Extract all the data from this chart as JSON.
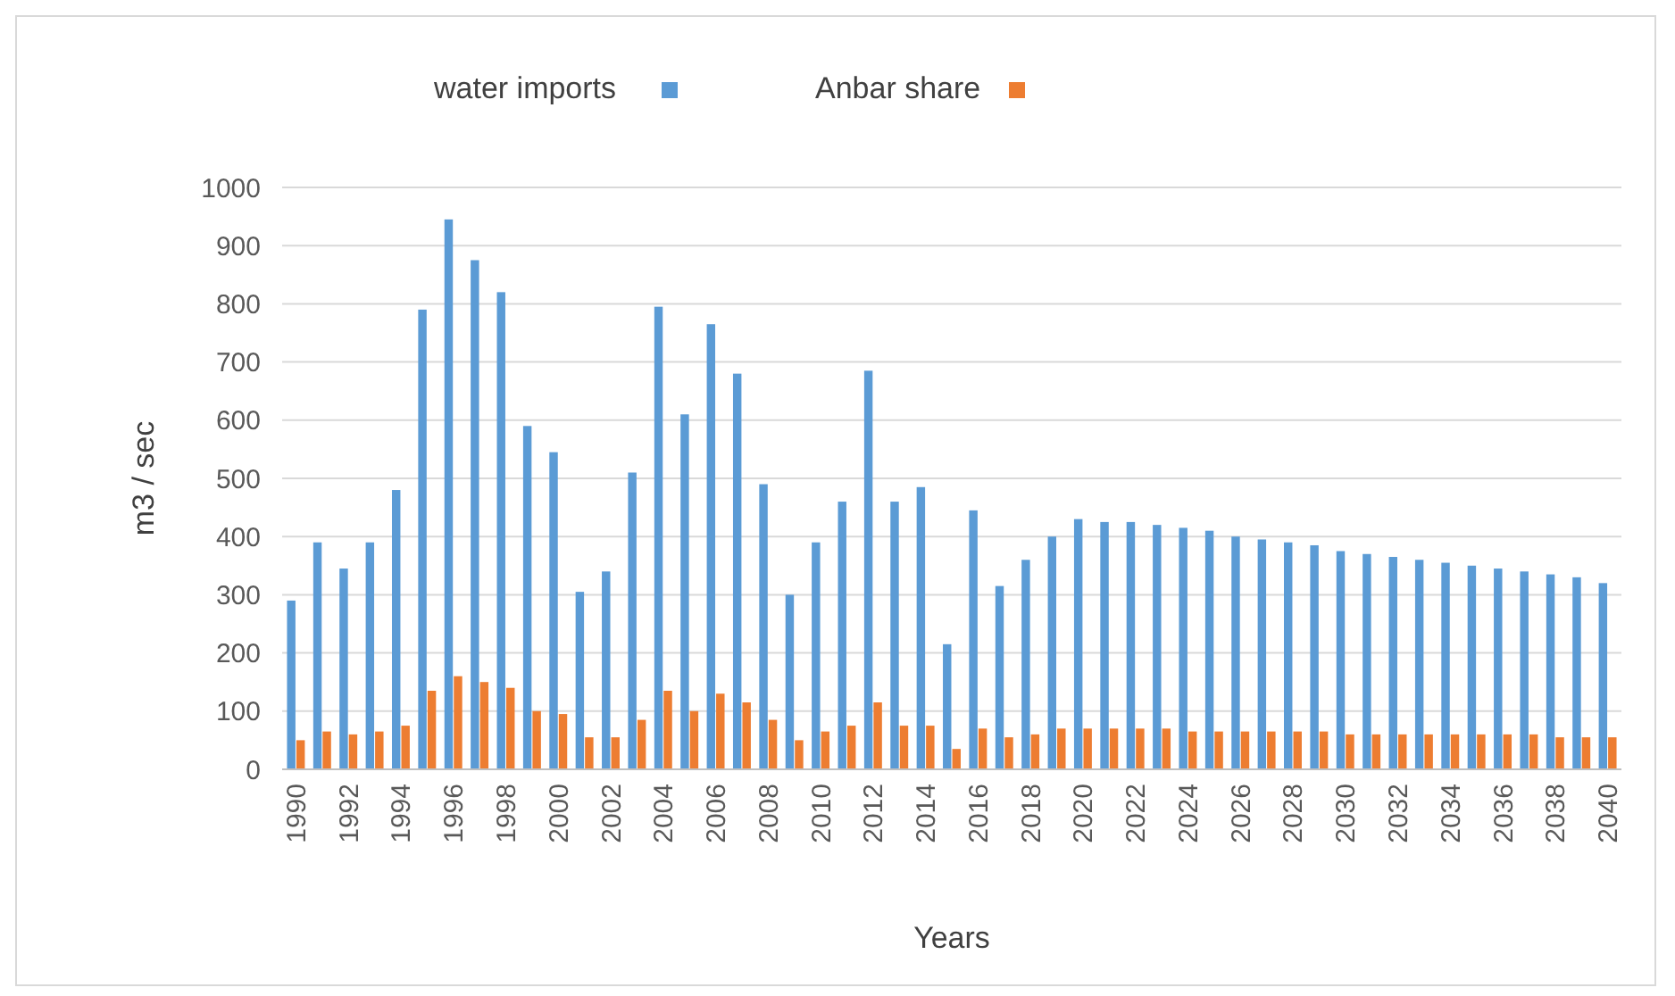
{
  "chart_data": {
    "type": "bar",
    "xlabel": "Years",
    "ylabel": "m3 / sec",
    "categories": [
      "1990",
      null,
      "1992",
      null,
      "1994",
      null,
      "1996",
      null,
      "1998",
      null,
      "2000",
      null,
      "2002",
      null,
      "2004",
      null,
      "2006",
      null,
      "2008",
      null,
      "2010",
      null,
      "2012",
      null,
      "2014",
      null,
      "2016",
      null,
      "2018",
      null,
      "2020",
      null,
      "2022",
      null,
      "2024",
      null,
      "2026",
      null,
      "2028",
      null,
      "2030",
      null,
      "2032",
      null,
      "2034",
      null,
      "2036",
      null,
      "2038",
      null,
      "2040"
    ],
    "series": [
      {
        "name": "water imports",
        "color": "#5b9bd5",
        "values": [
          290,
          390,
          345,
          390,
          480,
          790,
          945,
          875,
          820,
          590,
          545,
          305,
          340,
          510,
          795,
          610,
          765,
          680,
          490,
          300,
          390,
          460,
          685,
          460,
          485,
          215,
          445,
          315,
          360,
          400,
          430,
          425,
          425,
          420,
          415,
          410,
          400,
          395,
          390,
          385,
          375,
          370,
          365,
          360,
          355,
          350,
          345,
          340,
          335,
          330,
          320
        ]
      },
      {
        "name": "Anbar share",
        "color": "#ed7d31",
        "values": [
          50,
          65,
          60,
          65,
          75,
          135,
          160,
          150,
          140,
          100,
          95,
          55,
          55,
          85,
          135,
          100,
          130,
          115,
          85,
          50,
          65,
          75,
          115,
          75,
          75,
          35,
          70,
          55,
          60,
          70,
          70,
          70,
          70,
          70,
          65,
          65,
          65,
          65,
          65,
          65,
          60,
          60,
          60,
          60,
          60,
          60,
          60,
          60,
          55,
          55,
          55
        ]
      }
    ],
    "ylim": [
      0,
      1000
    ],
    "yticks": [
      0,
      100,
      200,
      300,
      400,
      500,
      600,
      700,
      800,
      900,
      1000
    ],
    "grid": "y",
    "legend": "top"
  }
}
